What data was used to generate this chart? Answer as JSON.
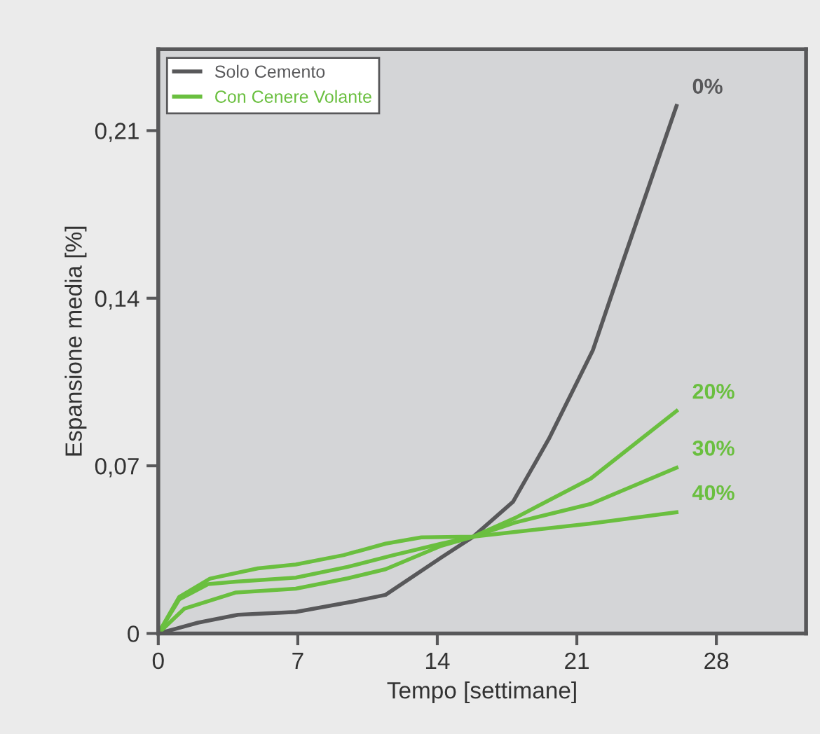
{
  "chart_data": {
    "type": "line",
    "xlabel": "Tempo [settimane]",
    "ylabel": "Espansione media [%]",
    "xlim": [
      0,
      32.5
    ],
    "ylim": [
      0,
      0.244
    ],
    "xticks": [
      0,
      7,
      14,
      21,
      28
    ],
    "yticks": [
      {
        "value": 0,
        "label": "0"
      },
      {
        "value": 0.07,
        "label": "0,07"
      },
      {
        "value": 0.14,
        "label": "0,14"
      },
      {
        "value": 0.21,
        "label": "0,21"
      }
    ],
    "grid": false,
    "legend": "top left",
    "marker": "none",
    "line_style": "solid",
    "annotations": [
      "0%",
      "20%",
      "30%",
      "40%"
    ],
    "series": [
      {
        "name": "Solo Cemento",
        "color": "#58585a",
        "x": [
          0,
          2.0,
          4.0,
          6.9,
          9.7,
          11.4,
          14.2,
          15.8,
          17.8,
          19.6,
          21.8,
          23.3,
          26.0
        ],
        "values": [
          0,
          0.0045,
          0.0078,
          0.009,
          0.0132,
          0.0161,
          0.0317,
          0.0404,
          0.055,
          0.0813,
          0.1182,
          0.155,
          0.2203
        ]
      },
      {
        "name": "Con Cenere Volante",
        "color": "#6abf3f",
        "x": [
          0,
          1.3,
          3.9,
          6.9,
          9.5,
          11.4,
          14.2,
          15.8,
          17.9,
          21.7,
          26.0
        ],
        "values": [
          0,
          0.0103,
          0.0171,
          0.0187,
          0.023,
          0.0268,
          0.0366,
          0.0404,
          0.0482,
          0.0647,
          0.0929
        ]
      },
      {
        "color": "#6abf3f",
        "x": [
          0,
          1.05,
          2.5,
          3.9,
          6.9,
          9.5,
          11.8,
          14.2,
          15.8,
          17.9,
          21.7,
          26.0
        ],
        "values": [
          0,
          0.0142,
          0.0206,
          0.0216,
          0.0233,
          0.0278,
          0.0327,
          0.0375,
          0.0404,
          0.0463,
          0.0541,
          0.0692
        ]
      },
      {
        "color": "#6abf3f",
        "x": [
          0,
          1.05,
          2.6,
          5.0,
          6.9,
          9.3,
          11.4,
          13.2,
          15.8,
          17.9,
          21.7,
          26.0
        ],
        "values": [
          0,
          0.0152,
          0.0229,
          0.0272,
          0.0288,
          0.0327,
          0.0375,
          0.0401,
          0.0404,
          0.0424,
          0.0459,
          0.0506
        ]
      }
    ]
  }
}
